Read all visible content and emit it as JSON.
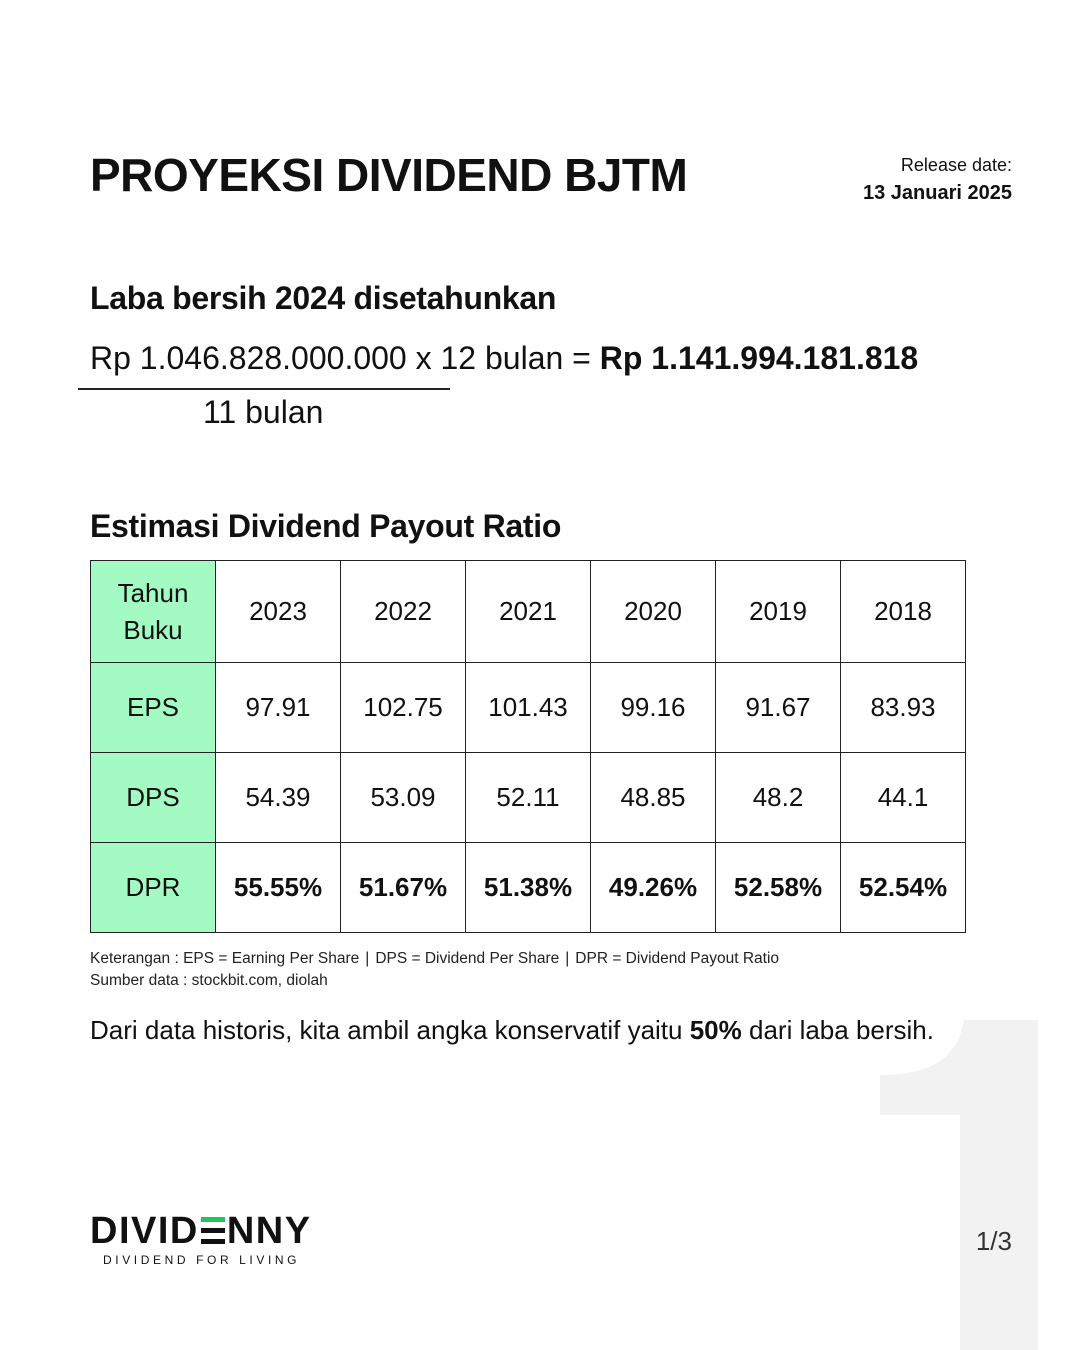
{
  "header": {
    "title": "PROYEKSI DIVIDEND BJTM",
    "release_label": "Release date:",
    "release_date": "13 Januari 2025"
  },
  "earnings": {
    "heading": "Laba bersih 2024 disetahunkan",
    "numerator": "Rp 1.046.828.000.000 x 12 bulan",
    "equals": "=",
    "result": "Rp 1.141.994.181.818",
    "denominator": "11 bulan"
  },
  "dpr_section": {
    "heading": "Estimasi Dividend Payout Ratio",
    "table": {
      "header_label_line1": "Tahun",
      "header_label_line2": "Buku",
      "years": [
        "2023",
        "2022",
        "2021",
        "2020",
        "2019",
        "2018"
      ],
      "rows": [
        {
          "label": "EPS",
          "values": [
            "97.91",
            "102.75",
            "101.43",
            "99.16",
            "91.67",
            "83.93"
          ]
        },
        {
          "label": "DPS",
          "values": [
            "54.39",
            "53.09",
            "52.11",
            "48.85",
            "48.2",
            "44.1"
          ]
        },
        {
          "label": "DPR",
          "values": [
            "55.55%",
            "51.67%",
            "51.38%",
            "49.26%",
            "52.58%",
            "52.54%"
          ]
        }
      ]
    },
    "notes": {
      "eps": "Keterangan : EPS = Earning Per Share",
      "dps": "DPS = Dividend Per Share",
      "dpr": "DPR = Dividend Payout Ratio",
      "separator": "|",
      "source": "Sumber data : stockbit.com, diolah"
    }
  },
  "conclusion": {
    "before": "Dari data historis, kita ambil angka konservatif yaitu ",
    "highlight": "50%",
    "after": " dari laba bersih."
  },
  "footer": {
    "logo_left": "DIVID",
    "logo_right": "NNY",
    "tagline": "DIVIDEND FOR LIVING",
    "page": "1/3"
  },
  "colors": {
    "header_cell": "#a3fac2",
    "logo_accent": "#22c55e",
    "background_number": "#f2f2f2"
  }
}
